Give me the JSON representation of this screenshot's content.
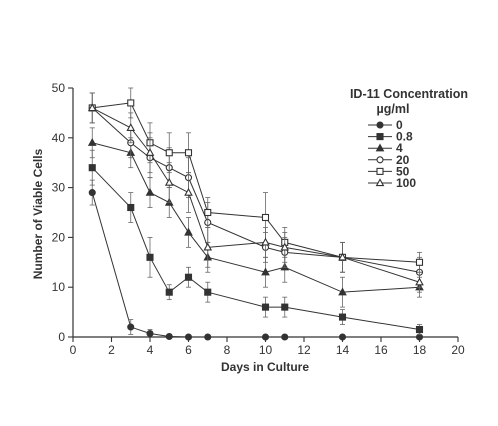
{
  "chart_data": {
    "type": "line",
    "title": "",
    "xlabel": "Days in Culture",
    "ylabel": "Number of Viable Cells",
    "xlim": [
      0,
      20
    ],
    "ylim": [
      0,
      50
    ],
    "xticks": [
      0,
      2,
      4,
      6,
      8,
      10,
      12,
      14,
      16,
      18,
      20
    ],
    "yticks": [
      0,
      10,
      20,
      30,
      40,
      50
    ],
    "grid": false,
    "legend": {
      "title_line1": "ID-11 Concentration",
      "title_line2": "µg/ml",
      "placement": "top-right"
    },
    "x": [
      1,
      3,
      4,
      5,
      6,
      7,
      10,
      11,
      14,
      18
    ],
    "series": [
      {
        "name": "0",
        "marker": "filled-circle",
        "values": [
          29,
          2,
          0.7,
          0.1,
          0,
          0,
          0,
          0,
          0,
          0
        ],
        "errors": [
          2.5,
          1.5,
          0.8,
          0.3,
          0.3,
          0.3,
          0.3,
          0.3,
          0.3,
          0.3
        ]
      },
      {
        "name": "0.8",
        "marker": "filled-square",
        "values": [
          34,
          26,
          16,
          9,
          12,
          9,
          6,
          6,
          4,
          1.5
        ],
        "errors": [
          3.5,
          3,
          4,
          1.5,
          2,
          2,
          2,
          2,
          1.5,
          1
        ]
      },
      {
        "name": "4",
        "marker": "filled-triangle",
        "values": [
          39,
          37,
          29,
          27,
          21,
          16,
          13,
          14,
          9,
          10
        ],
        "errors": [
          3,
          3,
          3,
          3,
          3,
          3,
          3,
          3,
          3,
          2
        ]
      },
      {
        "name": "20",
        "marker": "open-circle",
        "values": [
          46,
          39,
          36,
          34,
          32,
          23,
          18,
          17,
          16,
          13
        ],
        "errors": [
          3,
          3,
          4,
          4,
          4,
          4,
          3,
          3,
          3,
          3
        ]
      },
      {
        "name": "50",
        "marker": "open-square",
        "values": [
          46,
          47,
          39,
          37,
          37,
          25,
          24,
          19,
          16,
          15
        ],
        "errors": [
          3,
          3,
          4,
          4,
          4,
          3,
          5,
          3,
          3,
          2
        ]
      },
      {
        "name": "100",
        "marker": "open-triangle",
        "values": [
          46,
          42,
          37,
          31,
          29,
          18,
          19,
          18,
          16,
          11
        ],
        "errors": [
          3,
          3,
          4,
          4,
          4,
          4,
          3,
          3,
          3,
          2
        ]
      }
    ]
  }
}
